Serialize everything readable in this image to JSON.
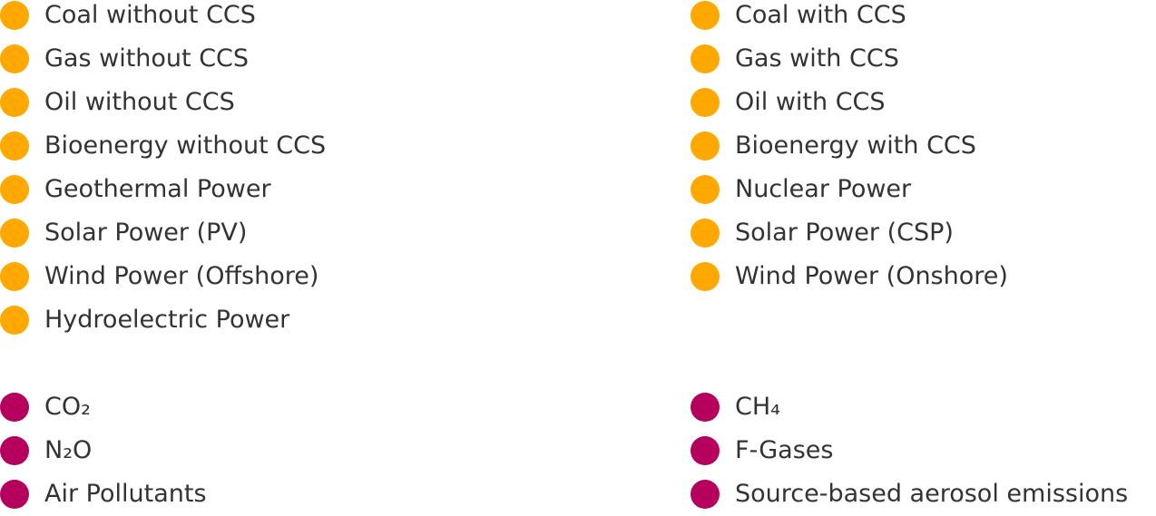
{
  "colors": {
    "energy": "#FFA800",
    "emissions": "#B5005E",
    "text": "#333333"
  },
  "energy_legend": {
    "left": [
      "Coal without CCS",
      "Gas without CCS",
      "Oil without CCS",
      "Bioenergy without CCS",
      "Geothermal Power",
      "Solar Power (PV)",
      "Wind Power (Offshore)",
      "Hydroelectric Power"
    ],
    "right": [
      "Coal with CCS",
      "Gas with CCS",
      "Oil with CCS",
      "Bioenergy with CCS",
      "Nuclear Power",
      "Solar Power (CSP)",
      "Wind Power (Onshore)"
    ]
  },
  "emissions_legend": {
    "left": [
      "CO₂",
      "N₂O",
      "Air Pollutants"
    ],
    "right": [
      "CH₄",
      "F-Gases",
      "Source-based aerosol emissions"
    ]
  }
}
